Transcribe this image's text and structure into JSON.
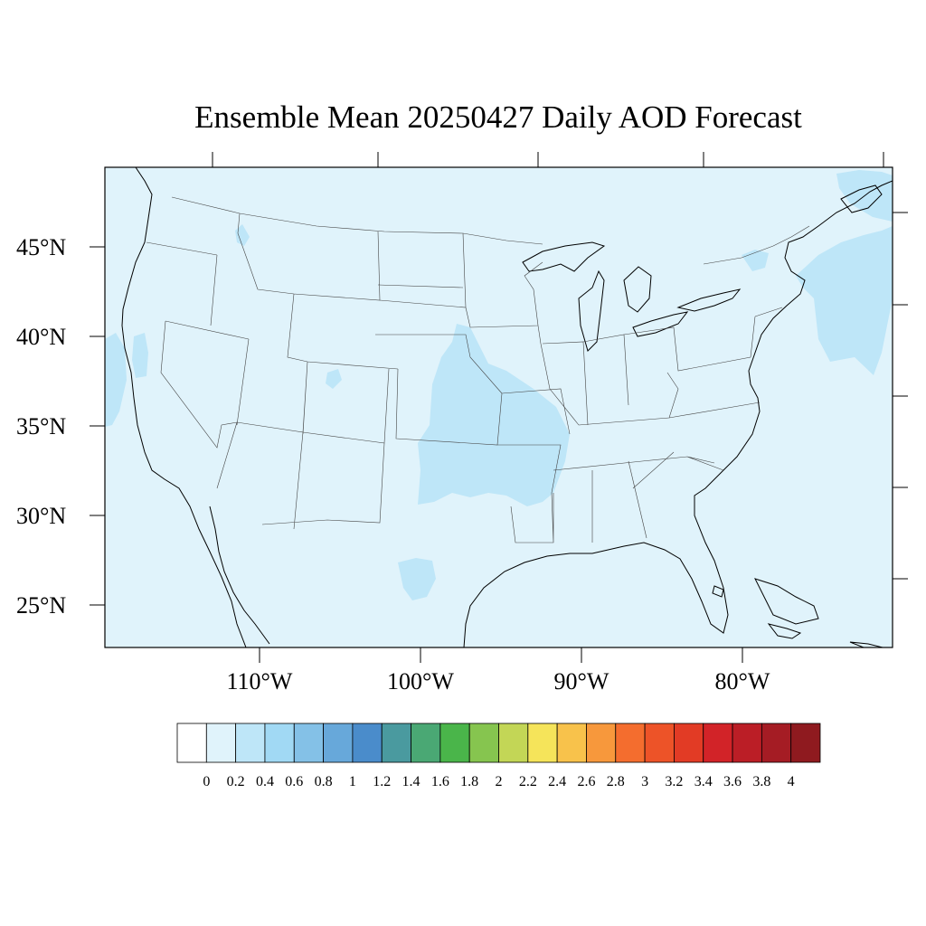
{
  "title": "Ensemble Mean 20250427 Daily AOD Forecast",
  "map": {
    "lat_labels": [
      "45°N",
      "40°N",
      "35°N",
      "30°N",
      "25°N"
    ],
    "lon_labels": [
      "110°W",
      "100°W",
      "90°W",
      "80°W"
    ],
    "region": "Contiguous United States",
    "background_level": "0.1-0.2",
    "colors": {
      "background": "#e0f3fb",
      "enhanced": "#bee6f8",
      "border": "#000000"
    }
  },
  "colorbar": {
    "colors": [
      "#ffffff",
      "#e0f3fb",
      "#bee6f8",
      "#a1d9f4",
      "#84c1e7",
      "#67a8da",
      "#4a8ccb",
      "#4a9a9f",
      "#4aa874",
      "#4ab54a",
      "#86c54f",
      "#c3d656",
      "#f5e45a",
      "#f8c24b",
      "#f7983c",
      "#f46d2e",
      "#ed5328",
      "#e23b25",
      "#d22328",
      "#bb1e26",
      "#a51c24",
      "#8f1a1f"
    ],
    "labels": [
      "0",
      "0.2",
      "0.4",
      "0.6",
      "0.8",
      "1",
      "1.2",
      "1.4",
      "1.6",
      "1.8",
      "2",
      "2.2",
      "2.4",
      "2.6",
      "2.8",
      "3",
      "3.2",
      "3.4",
      "3.6",
      "3.8",
      "4"
    ]
  }
}
